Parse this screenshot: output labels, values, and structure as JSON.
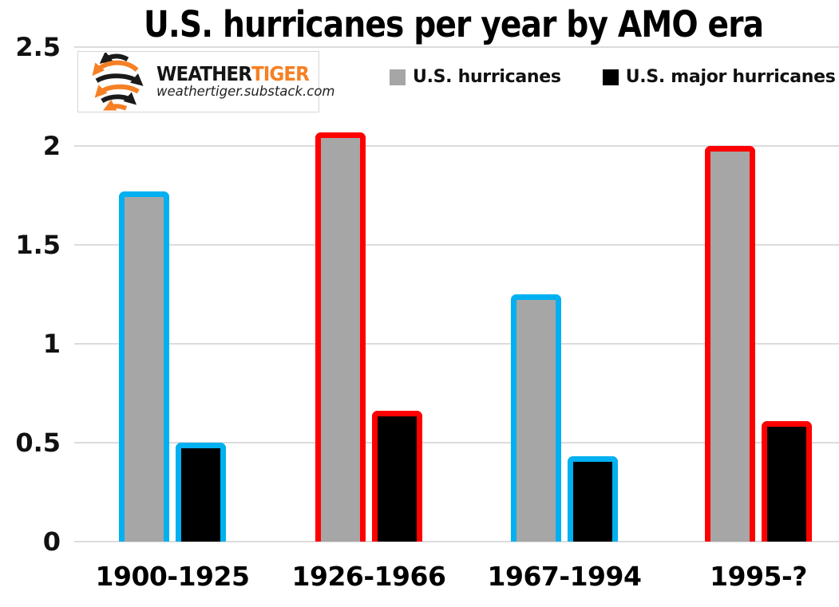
{
  "title": "U.S. hurricanes per year by AMO era",
  "logo": {
    "brand_weather": "WEATHER",
    "brand_tiger": "TIGER",
    "subtitle": "weathertiger.substack.com",
    "icon": "hurricane-swirl-icon",
    "orange": "#f58025",
    "black": "#1a1a1a"
  },
  "legend": {
    "items": [
      {
        "label": "U.S. hurricanes",
        "color": "#a6a6a6"
      },
      {
        "label": "U.S. major hurricanes",
        "color": "#000000"
      }
    ]
  },
  "chart_data": {
    "type": "bar",
    "title": "U.S. hurricanes per year by AMO era",
    "categories": [
      "1900-1925",
      "1926-1966",
      "1967-1994",
      "1995-?"
    ],
    "series": [
      {
        "name": "U.S. hurricanes",
        "color": "#a6a6a6",
        "values": [
          1.77,
          2.07,
          1.25,
          2.0
        ]
      },
      {
        "name": "U.S. major hurricanes",
        "color": "#000000",
        "values": [
          0.5,
          0.66,
          0.43,
          0.61
        ]
      }
    ],
    "era_outline_colors": [
      "#00b0f0",
      "#ff0000",
      "#00b0f0",
      "#ff0000"
    ],
    "yticks": [
      0,
      0.5,
      1,
      1.5,
      2,
      2.5
    ],
    "ylim": [
      0,
      2.5
    ],
    "xlabel": "",
    "ylabel": "",
    "grid": true,
    "gridline_color": "#dcdcdc",
    "legend_position": "top"
  }
}
